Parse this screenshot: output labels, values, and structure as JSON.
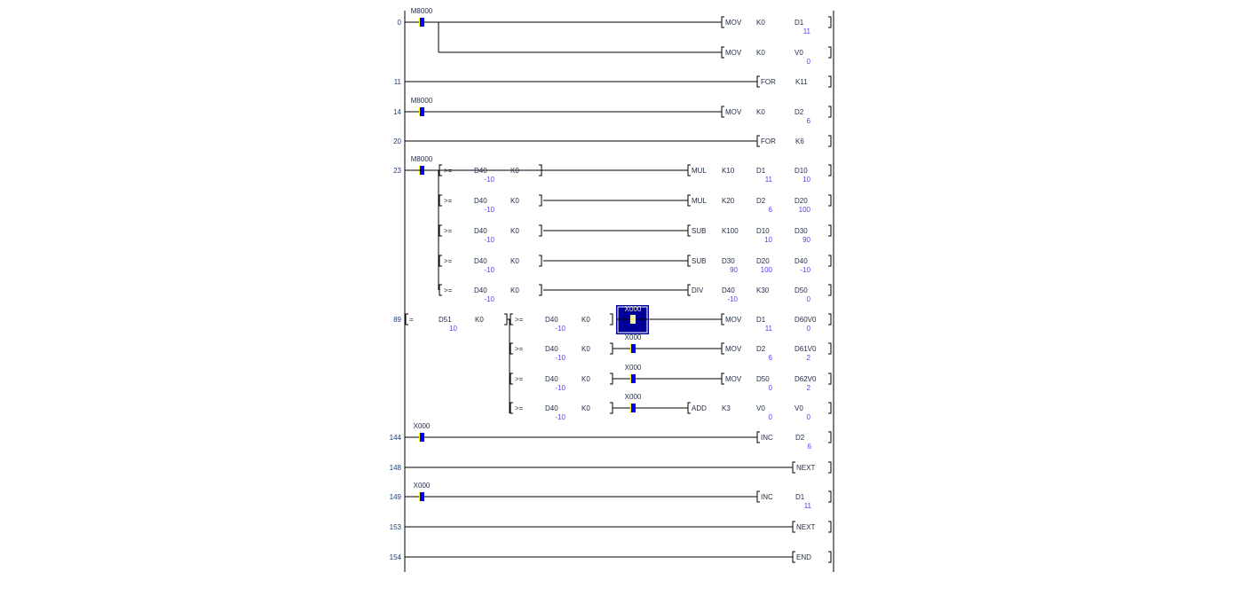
{
  "colors": {
    "contact": "#0000ff",
    "contact_edge": "#ffff00",
    "value": "#5a3cf0",
    "highlight": "#000099",
    "text": "#1f2a44"
  },
  "ladder": {
    "rows": [
      {
        "step": "0",
        "contact": "M8000",
        "instr": "MOV",
        "args": [
          [
            "K0",
            ""
          ],
          [
            "D1",
            "11"
          ]
        ]
      },
      {
        "step": "",
        "instr": "MOV",
        "args": [
          [
            "K0",
            ""
          ],
          [
            "V0",
            "0"
          ]
        ]
      },
      {
        "step": "11",
        "instr": "FOR",
        "args": [
          [
            "K11",
            ""
          ]
        ]
      },
      {
        "step": "14",
        "contact": "M8000",
        "instr": "MOV",
        "args": [
          [
            "K0",
            ""
          ],
          [
            "D2",
            "6"
          ]
        ]
      },
      {
        "step": "20",
        "instr": "FOR",
        "args": [
          [
            "K6",
            ""
          ]
        ]
      },
      {
        "step": "23",
        "contact": "M8000",
        "compare": {
          "op": ">=",
          "a": [
            "D40",
            "-10"
          ],
          "b": [
            "K0",
            ""
          ]
        },
        "instr": "MUL",
        "args": [
          [
            "K10",
            ""
          ],
          [
            "D1",
            "11"
          ],
          [
            "D10",
            "10"
          ]
        ]
      },
      {
        "step": "",
        "compare": {
          "op": ">=",
          "a": [
            "D40",
            "-10"
          ],
          "b": [
            "K0",
            ""
          ]
        },
        "instr": "MUL",
        "args": [
          [
            "K20",
            ""
          ],
          [
            "D2",
            "6"
          ],
          [
            "D20",
            "100"
          ]
        ]
      },
      {
        "step": "",
        "compare": {
          "op": ">=",
          "a": [
            "D40",
            "-10"
          ],
          "b": [
            "K0",
            ""
          ]
        },
        "instr": "SUB",
        "args": [
          [
            "K100",
            ""
          ],
          [
            "D10",
            "10"
          ],
          [
            "D30",
            "90"
          ]
        ]
      },
      {
        "step": "",
        "compare": {
          "op": ">=",
          "a": [
            "D40",
            "-10"
          ],
          "b": [
            "K0",
            ""
          ]
        },
        "instr": "SUB",
        "args": [
          [
            "D30",
            "90"
          ],
          [
            "D20",
            "100"
          ],
          [
            "D40",
            "-10"
          ]
        ]
      },
      {
        "step": "",
        "compare": {
          "op": ">=",
          "a": [
            "D40",
            "-10"
          ],
          "b": [
            "K0",
            ""
          ]
        },
        "instr": "DIV",
        "args": [
          [
            "D40",
            "-10"
          ],
          [
            "K30",
            ""
          ],
          [
            "D50",
            "0"
          ]
        ]
      },
      {
        "step": "89",
        "compare0": {
          "op": "=",
          "a": [
            "D51",
            "10"
          ],
          "b": [
            "K0",
            ""
          ]
        },
        "compare": {
          "op": ">=",
          "a": [
            "D40",
            "-10"
          ],
          "b": [
            "K0",
            ""
          ]
        },
        "contact2": "X000",
        "selected": true,
        "instr": "MOV",
        "args": [
          [
            "D1",
            "11"
          ],
          [
            "D60V0",
            "0"
          ]
        ]
      },
      {
        "step": "",
        "compare": {
          "op": ">=",
          "a": [
            "D40",
            "-10"
          ],
          "b": [
            "K0",
            ""
          ]
        },
        "contact2": "X000",
        "instr": "MOV",
        "args": [
          [
            "D2",
            "6"
          ],
          [
            "D61V0",
            "2"
          ]
        ]
      },
      {
        "step": "",
        "compare": {
          "op": ">=",
          "a": [
            "D40",
            "-10"
          ],
          "b": [
            "K0",
            ""
          ]
        },
        "contact2": "X000",
        "instr": "MOV",
        "args": [
          [
            "D50",
            "0"
          ],
          [
            "D62V0",
            "2"
          ]
        ]
      },
      {
        "step": "",
        "compare": {
          "op": ">=",
          "a": [
            "D40",
            "-10"
          ],
          "b": [
            "K0",
            ""
          ]
        },
        "contact2": "X000",
        "instr": "ADD",
        "args": [
          [
            "K3",
            ""
          ],
          [
            "V0",
            "0"
          ],
          [
            "V0",
            "0"
          ]
        ]
      },
      {
        "step": "144",
        "contact": "X000",
        "instr": "INC",
        "args": [
          [
            "D2",
            "6"
          ]
        ]
      },
      {
        "step": "148",
        "instr": "NEXT",
        "args": []
      },
      {
        "step": "149",
        "contact": "X000",
        "instr": "INC",
        "args": [
          [
            "D1",
            "11"
          ]
        ]
      },
      {
        "step": "153",
        "instr": "NEXT",
        "args": []
      },
      {
        "step": "154",
        "instr": "END",
        "args": []
      }
    ]
  }
}
